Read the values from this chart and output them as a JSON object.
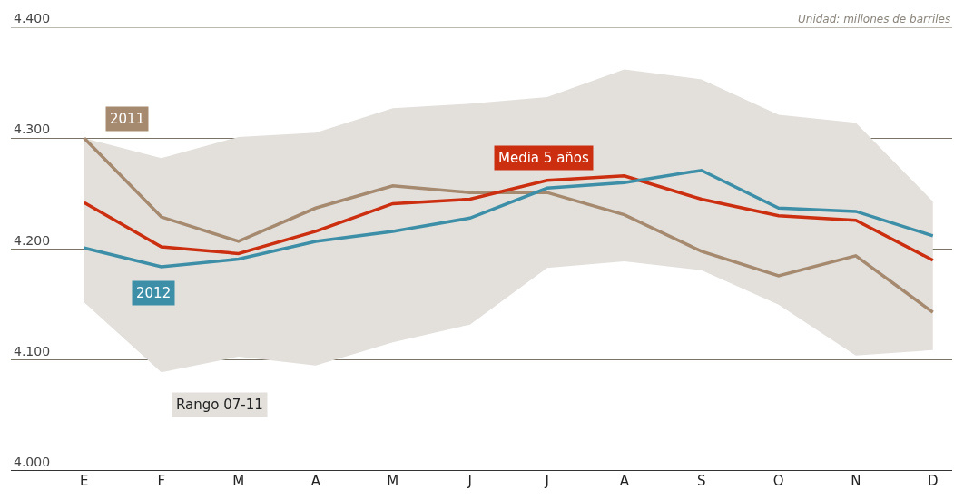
{
  "chart_data": {
    "type": "line",
    "subtitle": "Unidad: millones de barriles",
    "categories": [
      "E",
      "F",
      "M",
      "A",
      "M",
      "J",
      "J",
      "A",
      "S",
      "O",
      "N",
      "D"
    ],
    "series": [
      {
        "name": "2011",
        "color": "#a58a70",
        "values": [
          4300,
          4229,
          4207,
          4237,
          4257,
          4251,
          4251,
          4231,
          4198,
          4176,
          4194,
          4143
        ]
      },
      {
        "name": "Media 5 años",
        "color": "#cc2e10",
        "values": [
          4242,
          4202,
          4196,
          4216,
          4241,
          4245,
          4262,
          4266,
          4245,
          4230,
          4226,
          4190
        ],
        "lower": [
          4152,
          4089,
          4103,
          4095,
          4116,
          4132,
          4183,
          4189,
          4181,
          4150,
          4104,
          4109
        ],
        "upper": [
          4300,
          4282,
          4301,
          4305,
          4327,
          4331,
          4337,
          4362,
          4353,
          4321,
          4314,
          4243
        ]
      },
      {
        "name": "2012",
        "color": "#3d8fa8",
        "values": [
          4201,
          4184,
          4191,
          4207,
          4216,
          4228,
          4255,
          4260,
          4271,
          4237,
          4234,
          4212
        ]
      }
    ],
    "ylim": [
      4000,
      4400
    ],
    "yticks": [
      {
        "value": 4000,
        "label": "4.000"
      },
      {
        "value": 4100,
        "label": "4.100"
      },
      {
        "value": 4200,
        "label": "4.200"
      },
      {
        "value": 4300,
        "label": "4.300"
      },
      {
        "value": 4400,
        "label": "4.400"
      }
    ],
    "annotations": [
      "Rango 07-11"
    ],
    "grid": "y",
    "marker": "none",
    "line_style": "solid"
  }
}
